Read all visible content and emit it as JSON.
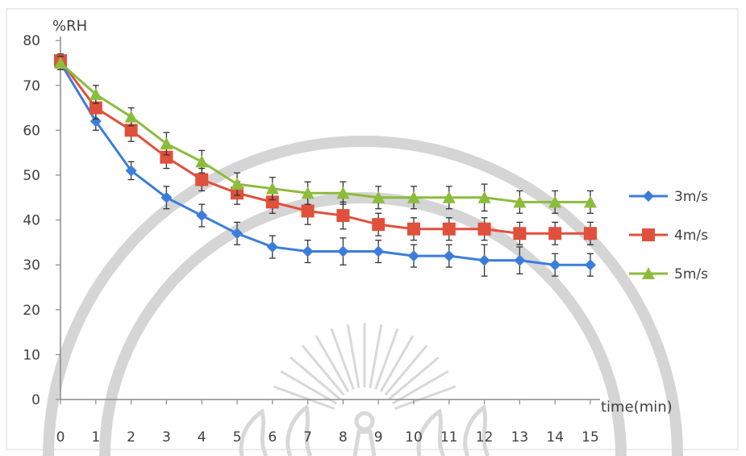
{
  "chart_data": {
    "type": "line",
    "ylabel": "%RH",
    "xlabel": "time(min)",
    "ylim": [
      0,
      80
    ],
    "yticks": [
      0,
      10,
      20,
      30,
      40,
      50,
      60,
      70,
      80
    ],
    "x": [
      0,
      1,
      2,
      3,
      4,
      5,
      6,
      7,
      8,
      9,
      10,
      11,
      12,
      13,
      14,
      15
    ],
    "grid": false,
    "legend_position": "right",
    "error_bars": true,
    "series": [
      {
        "name": "3m/s",
        "color": "#3c7ddb",
        "marker": "diamond",
        "values": [
          75,
          62,
          51,
          45,
          41,
          37,
          34,
          33,
          33,
          33,
          32,
          32,
          31,
          31,
          30,
          30
        ],
        "errors": [
          1.5,
          2,
          2,
          2.5,
          2.5,
          2.5,
          2.5,
          2.5,
          3,
          2.5,
          2.5,
          2.5,
          3.5,
          3,
          2.5,
          2.5
        ]
      },
      {
        "name": "4m/s",
        "color": "#e0503c",
        "marker": "square",
        "values": [
          75.5,
          65,
          60,
          54,
          49,
          46,
          44,
          42,
          41,
          39,
          38,
          38,
          38,
          37,
          37,
          37
        ],
        "errors": [
          1.5,
          2.5,
          2.5,
          2.5,
          2.5,
          2.5,
          2.5,
          3,
          3,
          2.5,
          2.5,
          2.5,
          2.5,
          2.5,
          2.5,
          2.5
        ]
      },
      {
        "name": "5m/s",
        "color": "#8cbc3c",
        "marker": "triangle",
        "values": [
          75,
          68,
          63,
          57,
          53,
          48,
          47,
          46,
          46,
          45,
          45,
          45,
          45,
          44,
          44,
          44
        ],
        "errors": [
          1.5,
          2,
          2,
          2.5,
          2.5,
          2.5,
          2.5,
          2.5,
          2.5,
          2.5,
          2.5,
          2.5,
          3,
          2.5,
          2.5,
          2.5
        ]
      }
    ]
  }
}
